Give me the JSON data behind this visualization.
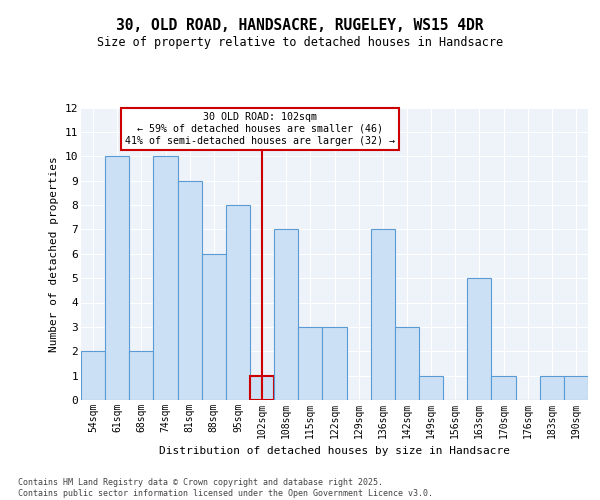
{
  "title1": "30, OLD ROAD, HANDSACRE, RUGELEY, WS15 4DR",
  "title2": "Size of property relative to detached houses in Handsacre",
  "xlabel": "Distribution of detached houses by size in Handsacre",
  "ylabel": "Number of detached properties",
  "categories": [
    "54sqm",
    "61sqm",
    "68sqm",
    "74sqm",
    "81sqm",
    "88sqm",
    "95sqm",
    "102sqm",
    "108sqm",
    "115sqm",
    "122sqm",
    "129sqm",
    "136sqm",
    "142sqm",
    "149sqm",
    "156sqm",
    "163sqm",
    "170sqm",
    "176sqm",
    "183sqm",
    "190sqm"
  ],
  "values": [
    2,
    10,
    2,
    10,
    9,
    6,
    8,
    1,
    7,
    3,
    3,
    0,
    7,
    3,
    1,
    0,
    5,
    1,
    0,
    1,
    1
  ],
  "highlight_index": 7,
  "highlight_label": "30 OLD ROAD: 102sqm\n← 59% of detached houses are smaller (46)\n41% of semi-detached houses are larger (32) →",
  "bar_color": "#cce0f5",
  "bar_edge_color": "#5b9bd5",
  "highlight_line_color": "#cc0000",
  "annotation_box_color": "#cc0000",
  "background_color": "#eef2f9",
  "grid_color": "#ffffff",
  "ylim": [
    0,
    12
  ],
  "yticks": [
    0,
    1,
    2,
    3,
    4,
    5,
    6,
    7,
    8,
    9,
    10,
    11,
    12
  ],
  "footer_line1": "Contains HM Land Registry data © Crown copyright and database right 2025.",
  "footer_line2": "Contains public sector information licensed under the Open Government Licence v3.0."
}
